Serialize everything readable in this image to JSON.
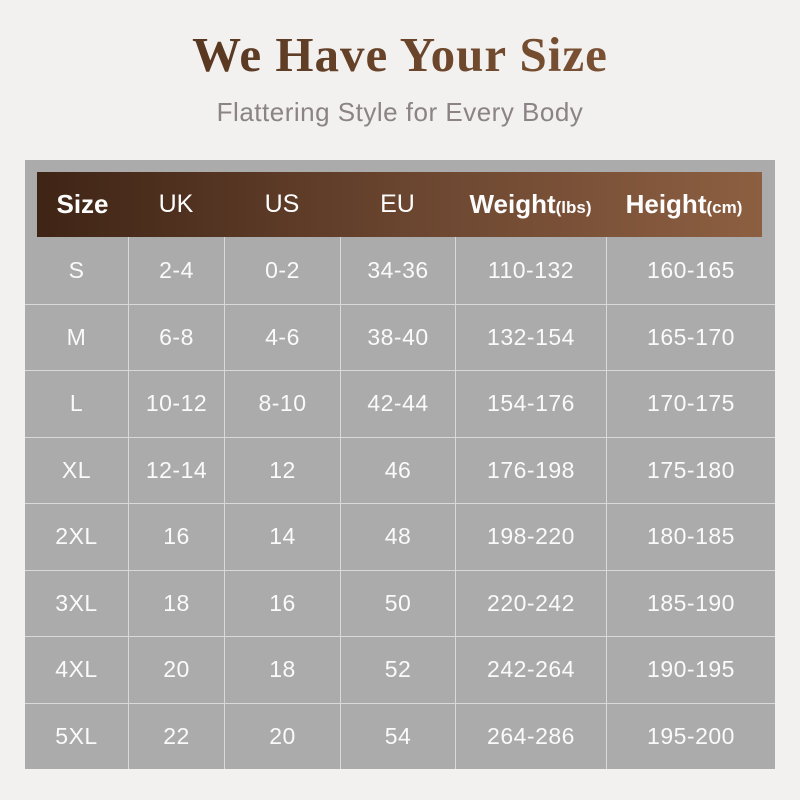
{
  "page": {
    "title": "We Have Your Size",
    "subtitle": "Flattering Style for Every Body"
  },
  "colors": {
    "page_bg": "#f2f1ef",
    "panel_bg": "#ababab",
    "header_gradient_left": "#3f2415",
    "header_gradient_mid": "#6b4630",
    "header_gradient_right": "#8d5f41",
    "title_brown_dark": "#54341f",
    "title_brown_light": "#7d5335",
    "subtitle_gray": "#8b8385",
    "cell_text": "#fafafa",
    "grid_line": "rgba(255,255,255,0.55)"
  },
  "table": {
    "columns": [
      {
        "label": "Size",
        "unit": "",
        "emphasis": true
      },
      {
        "label": "UK",
        "unit": "",
        "emphasis": false
      },
      {
        "label": "US",
        "unit": "",
        "emphasis": false
      },
      {
        "label": "EU",
        "unit": "",
        "emphasis": false
      },
      {
        "label": "Weight",
        "unit": "(lbs)",
        "emphasis": true
      },
      {
        "label": "Height",
        "unit": "(cm)",
        "emphasis": true
      }
    ],
    "rows": [
      [
        "S",
        "2-4",
        "0-2",
        "34-36",
        "110-132",
        "160-165"
      ],
      [
        "M",
        "6-8",
        "4-6",
        "38-40",
        "132-154",
        "165-170"
      ],
      [
        "L",
        "10-12",
        "8-10",
        "42-44",
        "154-176",
        "170-175"
      ],
      [
        "XL",
        "12-14",
        "12",
        "46",
        "176-198",
        "175-180"
      ],
      [
        "2XL",
        "16",
        "14",
        "48",
        "198-220",
        "180-185"
      ],
      [
        "3XL",
        "18",
        "16",
        "50",
        "220-242",
        "185-190"
      ],
      [
        "4XL",
        "20",
        "18",
        "52",
        "242-264",
        "190-195"
      ],
      [
        "5XL",
        "22",
        "20",
        "54",
        "264-286",
        "195-200"
      ]
    ]
  }
}
